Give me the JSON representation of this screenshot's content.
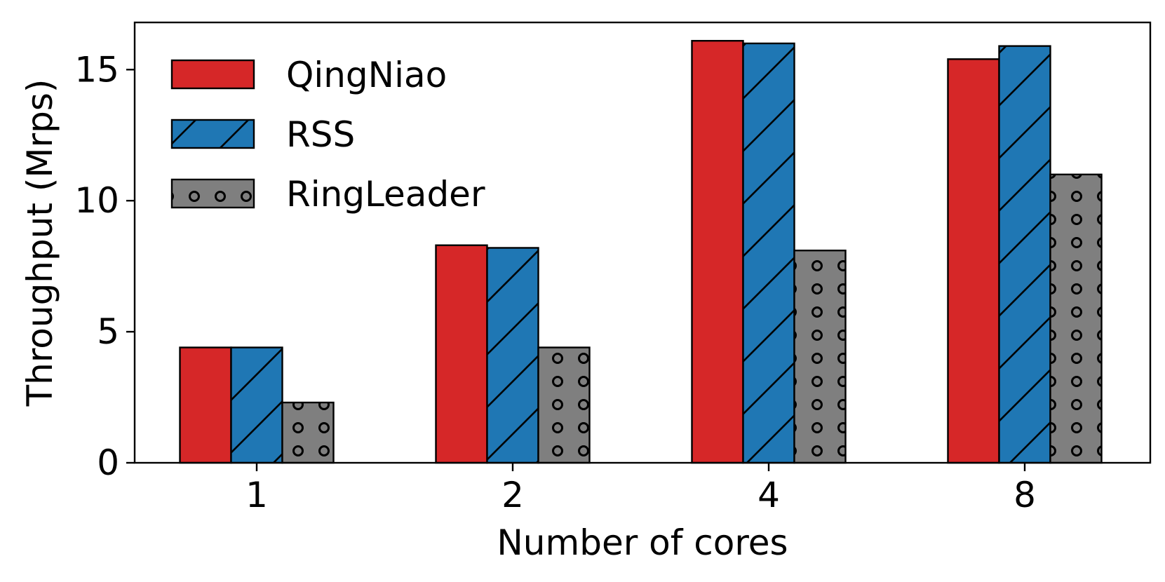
{
  "chart_data": {
    "type": "bar",
    "categories": [
      "1",
      "2",
      "4",
      "8"
    ],
    "series": [
      {
        "name": "QingNiao",
        "values": [
          4.4,
          8.3,
          16.1,
          15.4
        ],
        "color": "#d62728",
        "pattern": "solid"
      },
      {
        "name": "RSS",
        "values": [
          4.4,
          8.2,
          16.0,
          15.9
        ],
        "color": "#1f77b4",
        "pattern": "diagonal-hatch"
      },
      {
        "name": "RingLeader",
        "values": [
          2.3,
          4.4,
          8.1,
          11.0
        ],
        "color": "#7f7f7f",
        "pattern": "circle-dots"
      }
    ],
    "title": "",
    "xlabel": "Number of cores",
    "ylabel": "Throughput (Mrps)",
    "ylim": [
      0,
      16.8
    ],
    "yticks": [
      "0",
      "5",
      "10",
      "15"
    ],
    "legend_position": "top-left",
    "grid": false
  }
}
